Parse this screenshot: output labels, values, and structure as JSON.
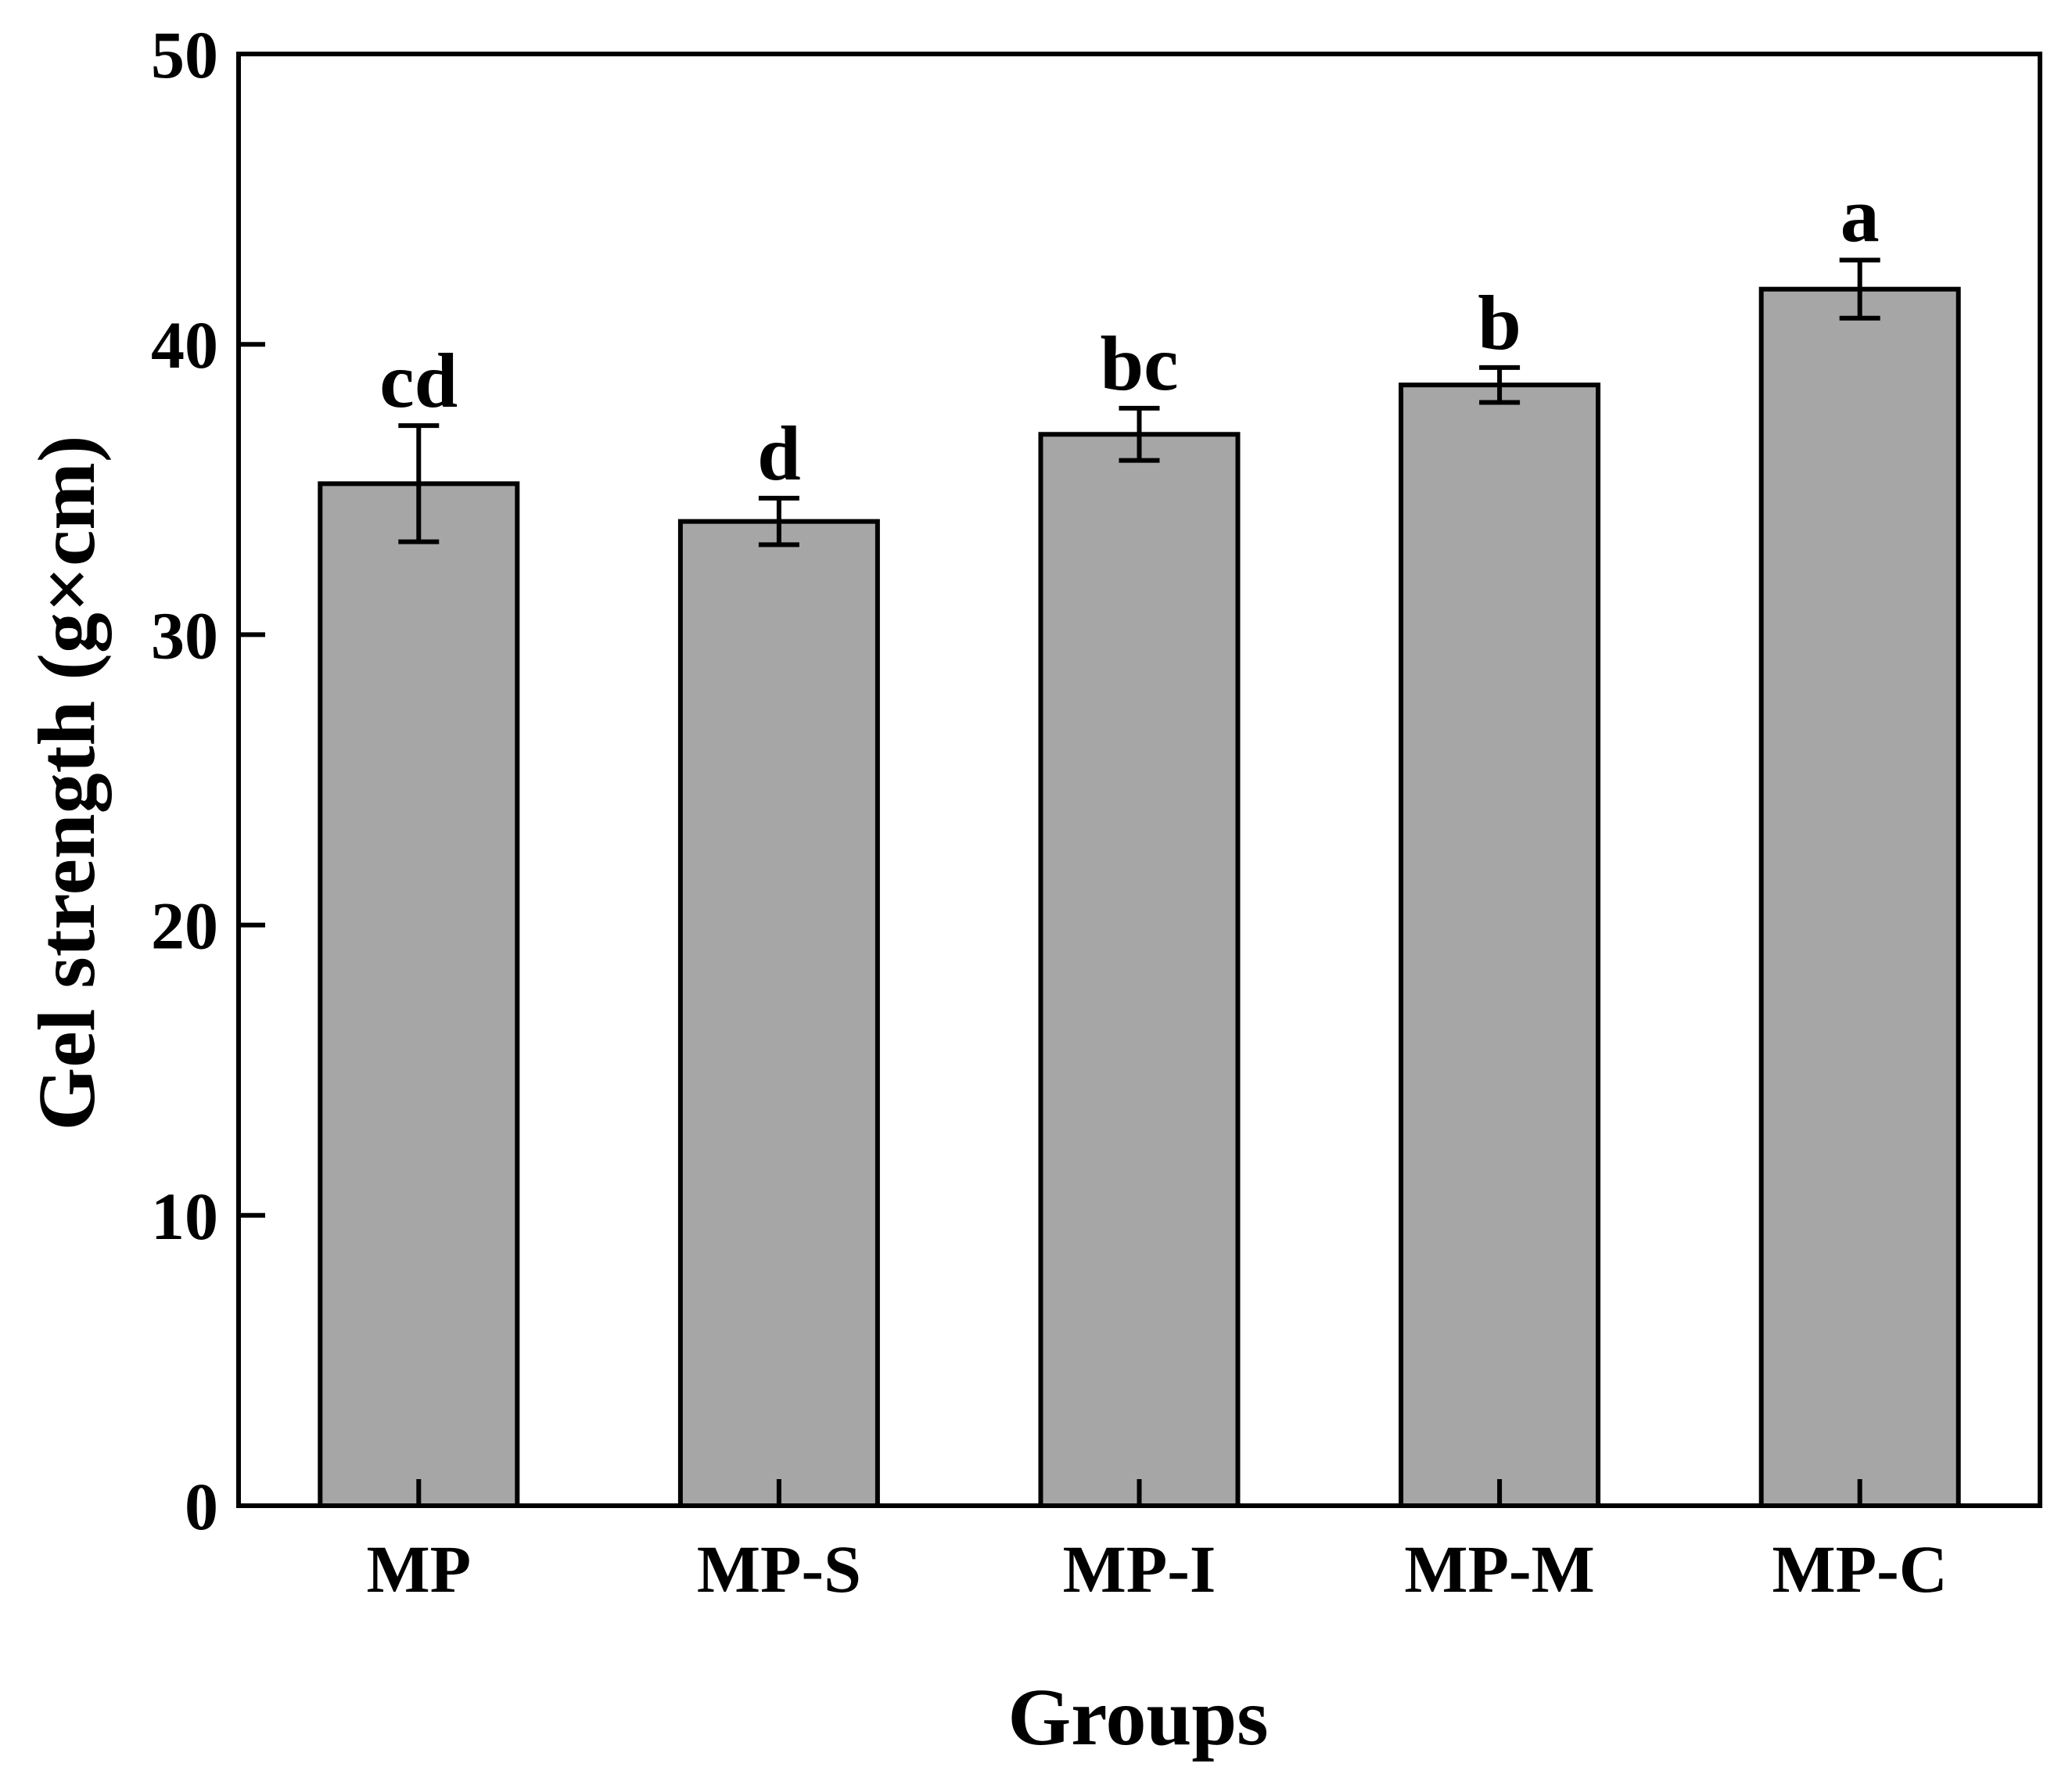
{
  "chart_data": {
    "type": "bar",
    "title": "",
    "xlabel": "Groups",
    "ylabel": "Gel strength (g×cm)",
    "ylim": [
      0,
      50
    ],
    "yticks": [
      0,
      10,
      20,
      30,
      40,
      50
    ],
    "categories": [
      "MP",
      "MP-S",
      "MP-I",
      "MP-M",
      "MP-C"
    ],
    "series": [
      {
        "values": [
          35.2,
          33.9,
          36.9,
          38.6,
          41.9
        ],
        "errors": [
          2.0,
          0.8,
          0.9,
          0.6,
          1.0
        ],
        "significance": [
          "cd",
          "d",
          "bc",
          "b",
          "a"
        ]
      }
    ],
    "bar_color": "#a6a6a6",
    "edge_color": "#000000",
    "grid": false,
    "legend": "none"
  }
}
